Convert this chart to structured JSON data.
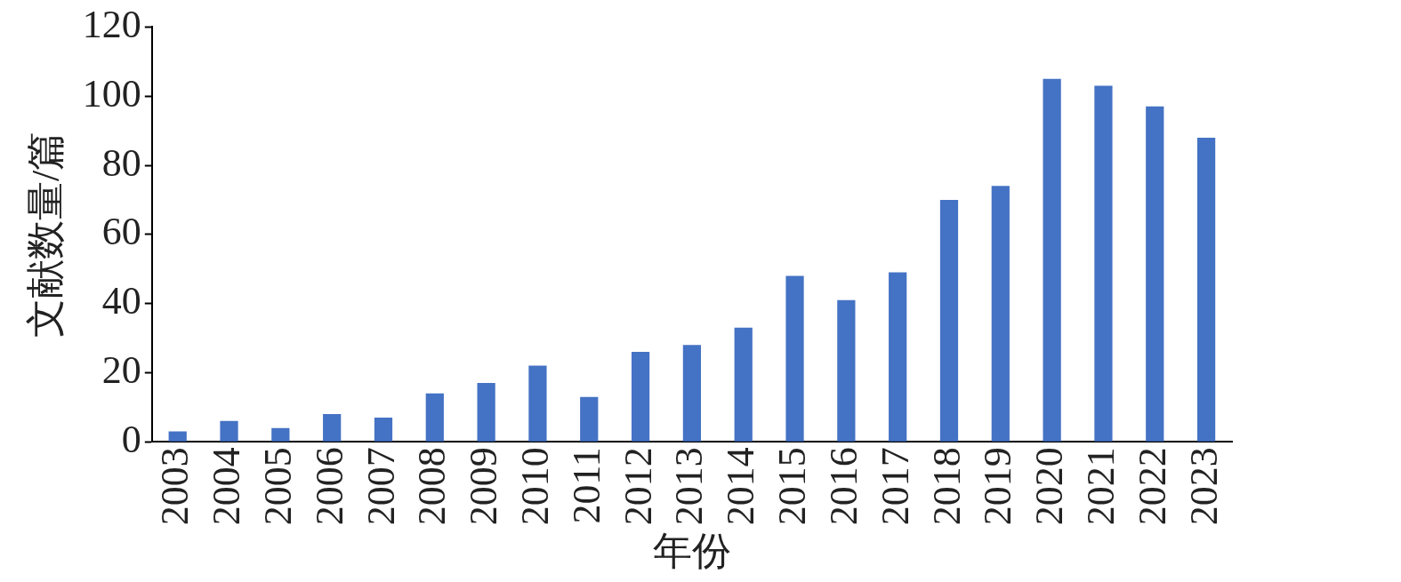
{
  "chart_data": {
    "type": "bar",
    "xlabel": "年份",
    "ylabel": "文献数量/篇",
    "categories": [
      "2003",
      "2004",
      "2005",
      "2006",
      "2007",
      "2008",
      "2009",
      "2010",
      "2011",
      "2012",
      "2013",
      "2014",
      "2015",
      "2016",
      "2017",
      "2018",
      "2019",
      "2020",
      "2021",
      "2022",
      "2023"
    ],
    "values": [
      3,
      6,
      4,
      8,
      7,
      14,
      17,
      22,
      13,
      26,
      28,
      33,
      48,
      41,
      49,
      70,
      74,
      105,
      103,
      97,
      88
    ],
    "color": "#4472c4",
    "ylim": [
      0,
      120
    ],
    "yticks": [
      0,
      20,
      40,
      60,
      80,
      100,
      120
    ],
    "grid": false,
    "legend": false
  }
}
